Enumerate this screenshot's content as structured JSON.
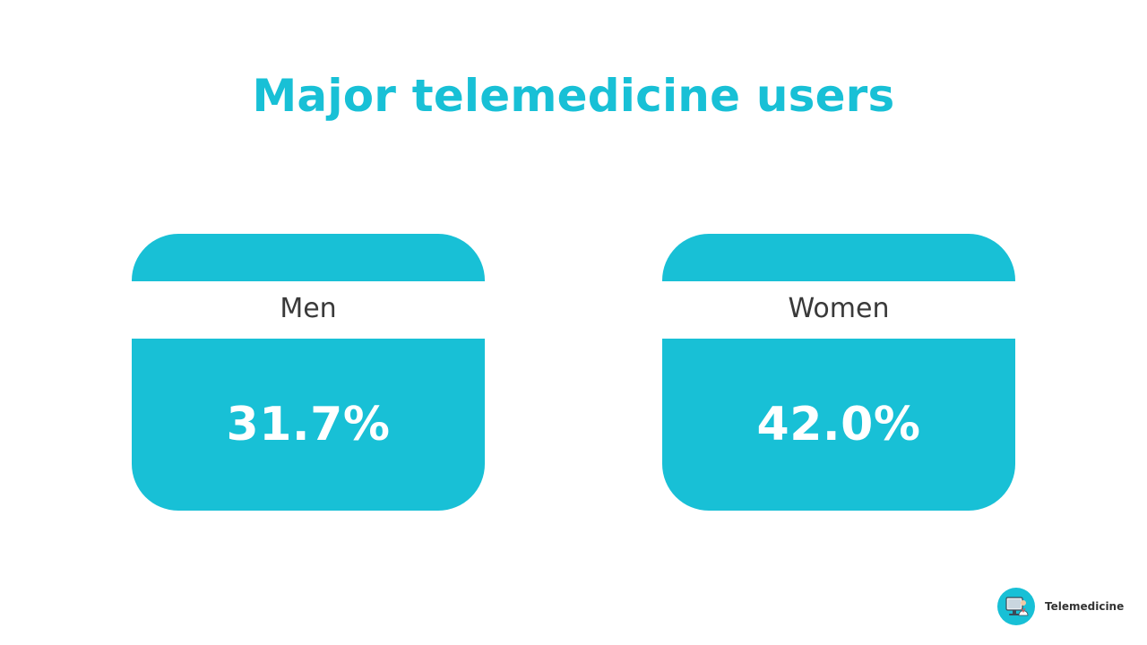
{
  "slide": {
    "title": "Major telemedicine users"
  },
  "cards": [
    {
      "label": "Men",
      "value": "31.7%"
    },
    {
      "label": "Women",
      "value": "42.0%"
    }
  ],
  "brand": {
    "name": "Telemedicine",
    "logo_icon": "telemedicine-logo-icon"
  },
  "colors": {
    "accent": "#18c0d6",
    "label_text": "#3a3a3a",
    "value_text": "#ffffff"
  }
}
